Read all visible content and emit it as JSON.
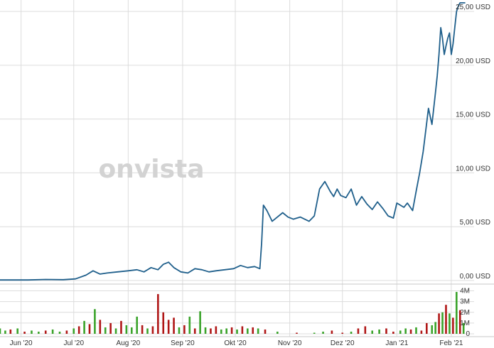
{
  "chart_data": {
    "type": "line",
    "watermark": "onvista",
    "price_axis": {
      "ticks": [
        {
          "value": 0,
          "label": "0,00 USD"
        },
        {
          "value": 5,
          "label": "5,00 USD"
        },
        {
          "value": 10,
          "label": "10,00 USD"
        },
        {
          "value": 15,
          "label": "15,00 USD"
        },
        {
          "value": 20,
          "label": "20,00 USD"
        },
        {
          "value": 25,
          "label": "25,00 USD"
        }
      ],
      "ylim": [
        -0.2,
        25.8
      ]
    },
    "volume_axis": {
      "ticks": [
        {
          "value": 0,
          "label": "0"
        },
        {
          "value": 1,
          "label": "1M"
        },
        {
          "value": 2,
          "label": "2M"
        },
        {
          "value": 3,
          "label": "3M"
        },
        {
          "value": 4,
          "label": "4M"
        }
      ],
      "ylim": [
        0,
        4.5
      ]
    },
    "x_axis": {
      "xlim": [
        "2020-05-20",
        "2021-02-14"
      ],
      "ticks": [
        {
          "date": "2020-06-01",
          "label": "Jun '20"
        },
        {
          "date": "2020-07-01",
          "label": "Jul '20"
        },
        {
          "date": "2020-08-01",
          "label": "Aug '20"
        },
        {
          "date": "2020-09-01",
          "label": "Sep '20"
        },
        {
          "date": "2020-10-01",
          "label": "Okt '20"
        },
        {
          "date": "2020-11-01",
          "label": "Nov '20"
        },
        {
          "date": "2020-12-01",
          "label": "Dez '20"
        },
        {
          "date": "2021-01-01",
          "label": "Jan '21"
        },
        {
          "date": "2021-02-01",
          "label": "Feb '21"
        }
      ]
    },
    "grid": true,
    "colors": {
      "line": "#1f5f8b",
      "volume_up": "#3aa32a",
      "volume_down": "#b01616",
      "grid": "#dcdcdc"
    },
    "price_series": {
      "dates": [
        "2020-05-20",
        "2020-05-28",
        "2020-06-05",
        "2020-06-15",
        "2020-06-25",
        "2020-07-02",
        "2020-07-08",
        "2020-07-12",
        "2020-07-16",
        "2020-07-20",
        "2020-07-26",
        "2020-08-01",
        "2020-08-06",
        "2020-08-10",
        "2020-08-14",
        "2020-08-18",
        "2020-08-21",
        "2020-08-24",
        "2020-08-27",
        "2020-08-31",
        "2020-09-04",
        "2020-09-08",
        "2020-09-12",
        "2020-09-16",
        "2020-09-20",
        "2020-09-25",
        "2020-09-30",
        "2020-10-04",
        "2020-10-08",
        "2020-10-12",
        "2020-10-15",
        "2020-10-16",
        "2020-10-17",
        "2020-10-19",
        "2020-10-22",
        "2020-10-25",
        "2020-10-28",
        "2020-10-31",
        "2020-11-03",
        "2020-11-07",
        "2020-11-12",
        "2020-11-15",
        "2020-11-18",
        "2020-11-21",
        "2020-11-24",
        "2020-11-26",
        "2020-11-28",
        "2020-11-30",
        "2020-12-03",
        "2020-12-06",
        "2020-12-09",
        "2020-12-12",
        "2020-12-15",
        "2020-12-18",
        "2020-12-21",
        "2020-12-24",
        "2020-12-27",
        "2020-12-30",
        "2021-01-01",
        "2021-01-03",
        "2021-01-05",
        "2021-01-07",
        "2021-01-10",
        "2021-01-12",
        "2021-01-14",
        "2021-01-16",
        "2021-01-19",
        "2021-01-21",
        "2021-01-23",
        "2021-01-24",
        "2021-01-25",
        "2021-01-26",
        "2021-01-27",
        "2021-01-28",
        "2021-01-29",
        "2021-01-30",
        "2021-01-31",
        "2021-02-01",
        "2021-02-02",
        "2021-02-03",
        "2021-02-04",
        "2021-02-05",
        "2021-02-06",
        "2021-02-07",
        "2021-02-08",
        "2021-02-09"
      ],
      "values": [
        0.05,
        0.05,
        0.05,
        0.1,
        0.08,
        0.15,
        0.5,
        0.9,
        0.6,
        0.7,
        0.8,
        0.9,
        1.0,
        0.8,
        1.2,
        1.0,
        1.5,
        1.7,
        1.2,
        0.8,
        0.7,
        1.1,
        1.0,
        0.8,
        0.9,
        1.0,
        1.1,
        1.4,
        1.2,
        1.3,
        1.1,
        3.5,
        7.0,
        6.5,
        5.5,
        5.9,
        6.3,
        5.9,
        5.7,
        5.9,
        5.5,
        6.0,
        8.5,
        9.2,
        8.3,
        7.8,
        8.5,
        7.9,
        7.7,
        8.5,
        7.0,
        7.8,
        7.1,
        6.6,
        7.3,
        6.7,
        6.0,
        5.8,
        7.2,
        7.0,
        6.8,
        7.2,
        6.5,
        8.3,
        10.0,
        12.0,
        16.0,
        14.5,
        17.5,
        19.0,
        21.0,
        23.5,
        22.5,
        21.0,
        21.8,
        22.5,
        23.0,
        21.0,
        22.0,
        23.5,
        25.0,
        25.5,
        26.0,
        26.5,
        27.0,
        27.5
      ]
    },
    "volume_series": {
      "dates": [
        "2020-05-20",
        "2020-05-23",
        "2020-05-26",
        "2020-05-30",
        "2020-06-03",
        "2020-06-07",
        "2020-06-11",
        "2020-06-15",
        "2020-06-19",
        "2020-06-23",
        "2020-06-27",
        "2020-07-01",
        "2020-07-04",
        "2020-07-07",
        "2020-07-10",
        "2020-07-13",
        "2020-07-16",
        "2020-07-19",
        "2020-07-22",
        "2020-07-25",
        "2020-07-28",
        "2020-07-31",
        "2020-08-03",
        "2020-08-06",
        "2020-08-09",
        "2020-08-12",
        "2020-08-15",
        "2020-08-18",
        "2020-08-21",
        "2020-08-24",
        "2020-08-27",
        "2020-08-30",
        "2020-09-02",
        "2020-09-05",
        "2020-09-08",
        "2020-09-11",
        "2020-09-14",
        "2020-09-17",
        "2020-09-20",
        "2020-09-23",
        "2020-09-26",
        "2020-09-29",
        "2020-10-02",
        "2020-10-05",
        "2020-10-08",
        "2020-10-11",
        "2020-10-14",
        "2020-10-18",
        "2020-10-25",
        "2020-11-05",
        "2020-11-15",
        "2020-11-20",
        "2020-11-25",
        "2020-12-01",
        "2020-12-06",
        "2020-12-10",
        "2020-12-14",
        "2020-12-18",
        "2020-12-22",
        "2020-12-26",
        "2020-12-30",
        "2021-01-03",
        "2021-01-06",
        "2021-01-09",
        "2021-01-12",
        "2021-01-15",
        "2021-01-18",
        "2021-01-21",
        "2021-01-23",
        "2021-01-25",
        "2021-01-27",
        "2021-01-29",
        "2021-01-31",
        "2021-02-02",
        "2021-02-04",
        "2021-02-06",
        "2021-02-08"
      ],
      "values": [
        0.5,
        0.3,
        0.4,
        0.5,
        0.2,
        0.3,
        0.2,
        0.3,
        0.4,
        0.2,
        0.3,
        0.5,
        0.7,
        1.2,
        0.9,
        2.3,
        1.3,
        0.6,
        1.0,
        0.5,
        1.2,
        0.8,
        0.6,
        1.6,
        0.8,
        0.5,
        0.7,
        3.7,
        2.0,
        1.3,
        1.5,
        0.6,
        0.8,
        1.6,
        0.5,
        2.1,
        0.6,
        0.5,
        0.7,
        0.4,
        0.5,
        0.6,
        0.4,
        0.7,
        0.5,
        0.6,
        0.5,
        0.4,
        0.2,
        0.1,
        0.1,
        0.2,
        0.3,
        0.1,
        0.2,
        0.5,
        0.7,
        0.3,
        0.4,
        0.5,
        0.2,
        0.3,
        0.5,
        0.4,
        0.6,
        0.3,
        1.0,
        0.8,
        1.1,
        1.9,
        2.0,
        2.7,
        1.9,
        1.5,
        3.9,
        2.2,
        1.0
      ],
      "direction": [
        "up",
        "up",
        "down",
        "up",
        "down",
        "up",
        "up",
        "down",
        "up",
        "up",
        "down",
        "up",
        "down",
        "up",
        "down",
        "up",
        "down",
        "up",
        "down",
        "up",
        "down",
        "up",
        "up",
        "up",
        "down",
        "up",
        "down",
        "down",
        "down",
        "down",
        "down",
        "up",
        "down",
        "up",
        "down",
        "up",
        "up",
        "down",
        "down",
        "up",
        "up",
        "down",
        "up",
        "down",
        "up",
        "down",
        "up",
        "down",
        "up",
        "down",
        "up",
        "up",
        "down",
        "down",
        "up",
        "down",
        "down",
        "up",
        "up",
        "down",
        "down",
        "up",
        "up",
        "down",
        "up",
        "down",
        "down",
        "up",
        "up",
        "down",
        "up",
        "down",
        "up",
        "down",
        "up",
        "down",
        "up"
      ]
    }
  }
}
